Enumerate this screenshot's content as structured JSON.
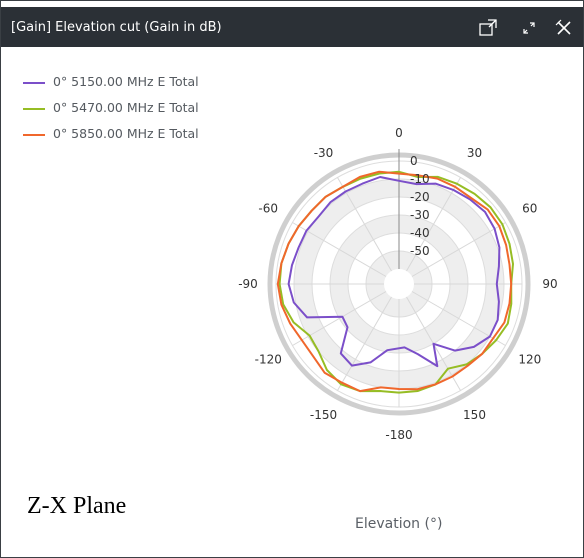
{
  "window": {
    "title": "[Gain] Elevation cut (Gain in dB)",
    "icons": {
      "popout": "popout-icon",
      "expand": "expand-icon",
      "close": "close-icon"
    }
  },
  "annotation": "Z-X Plane",
  "chart_data": {
    "type": "polar-line",
    "xlabel": "Elevation (°)",
    "angle_ticks": [
      {
        "value": 0,
        "label": "0"
      },
      {
        "value": 30,
        "label": "30"
      },
      {
        "value": 60,
        "label": "60"
      },
      {
        "value": 90,
        "label": "90"
      },
      {
        "value": 120,
        "label": "120"
      },
      {
        "value": 150,
        "label": "150"
      },
      {
        "value": 180,
        "label": "-180"
      },
      {
        "value": -150,
        "label": "-150"
      },
      {
        "value": -120,
        "label": "-120"
      },
      {
        "value": -90,
        "label": "-90"
      },
      {
        "value": -60,
        "label": "-60"
      },
      {
        "value": -30,
        "label": "-30"
      }
    ],
    "radial_ticks": [
      0,
      -10,
      -20,
      -30,
      -40,
      -50
    ],
    "r_range": [
      -60,
      0
    ],
    "legend_position": "top-left",
    "series": [
      {
        "name": "0° 5150.00 MHz E Total",
        "color": "#7b4fc9",
        "angles": [
          0,
          10,
          20,
          30,
          40,
          50,
          60,
          70,
          80,
          90,
          100,
          110,
          120,
          130,
          140,
          150,
          155,
          165,
          175,
          -170,
          -160,
          -150,
          -140,
          -130,
          -120,
          -110,
          -100,
          -90,
          -80,
          -70,
          -60,
          -50,
          -40,
          -30,
          -20,
          -10
        ],
        "gains": [
          -11,
          -12,
          -9,
          -8,
          -7,
          -6,
          -7,
          -9,
          -12,
          -14,
          -12,
          -10,
          -10,
          -14,
          -20,
          -30,
          -18,
          -28,
          -33,
          -31,
          -22,
          -16,
          -18,
          -31,
          -32,
          -14,
          -9,
          -7,
          -8,
          -9,
          -9,
          -10,
          -9,
          -9,
          -9,
          -8
        ]
      },
      {
        "name": "0° 5470.00 MHz E Total",
        "color": "#96bd24",
        "angles": [
          0,
          10,
          20,
          30,
          40,
          50,
          60,
          70,
          80,
          90,
          100,
          110,
          120,
          130,
          140,
          150,
          160,
          170,
          180,
          -170,
          -160,
          -150,
          -140,
          -130,
          -120,
          -110,
          -100,
          -90,
          -80,
          -70,
          -60,
          -50,
          -40,
          -30,
          -20,
          -10
        ],
        "gains": [
          -6,
          -8,
          -5,
          -4,
          -3,
          -2,
          -2,
          -3,
          -4,
          -6,
          -5,
          -4,
          -6,
          -8,
          -10,
          -14,
          -9,
          -8,
          -8,
          -8,
          -5,
          -4,
          -6,
          -10,
          -11,
          -6,
          -3,
          -2,
          -2,
          -3,
          -4,
          -5,
          -5,
          -6,
          -6,
          -6
        ]
      },
      {
        "name": "0° 5850.00 MHz E Total",
        "color": "#f0672c",
        "angles": [
          0,
          10,
          20,
          30,
          40,
          50,
          60,
          70,
          80,
          90,
          100,
          110,
          120,
          130,
          140,
          150,
          160,
          170,
          180,
          -170,
          -160,
          -150,
          -140,
          -130,
          -120,
          -110,
          -100,
          -90,
          -80,
          -70,
          -60,
          -50,
          -40,
          -30,
          -20,
          -10
        ],
        "gains": [
          -7,
          -7,
          -6,
          -6,
          -6,
          -4,
          -4,
          -5,
          -6,
          -6,
          -6,
          -6,
          -8,
          -8,
          -9,
          -9,
          -9,
          -9,
          -10,
          -10,
          -5,
          -5,
          -4,
          -6,
          -6,
          -4,
          -2,
          -1,
          -2,
          -3,
          -4,
          -5,
          -5,
          -6,
          -5,
          -5
        ]
      }
    ]
  }
}
